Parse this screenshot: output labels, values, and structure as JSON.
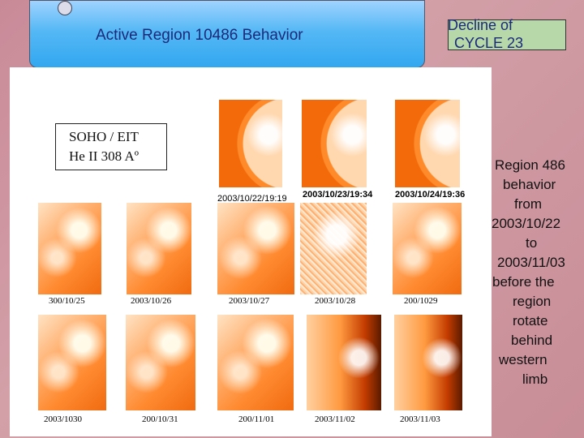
{
  "header": {
    "title": "Active Region 10486 Behavior",
    "cycle_lines": [
      "Decline of",
      "CYCLE 23"
    ]
  },
  "panel": {
    "instrument_lines": [
      "SOHO  /  EIT",
      "He  II  308 Aº"
    ],
    "row1_captions": [
      "2003/10/22/19:19",
      "2003/10/23/19:34",
      "2003/10/24/19:36"
    ],
    "row2_captions": [
      "300/10/25",
      "2003/10/26",
      "2003/10/27",
      "2003/10/28",
      "200/1029"
    ],
    "row3_captions": [
      "2003/1030",
      "200/10/31",
      "200/11/01",
      "2003/11/02",
      "2003/11/03"
    ]
  },
  "side_text_lines": [
    "Region 486",
    "behavior",
    "from",
    "2003/10/22",
    "to",
    "2003/11/03",
    "before the",
    "region",
    "rotate",
    "behind",
    "western",
    "limb"
  ]
}
